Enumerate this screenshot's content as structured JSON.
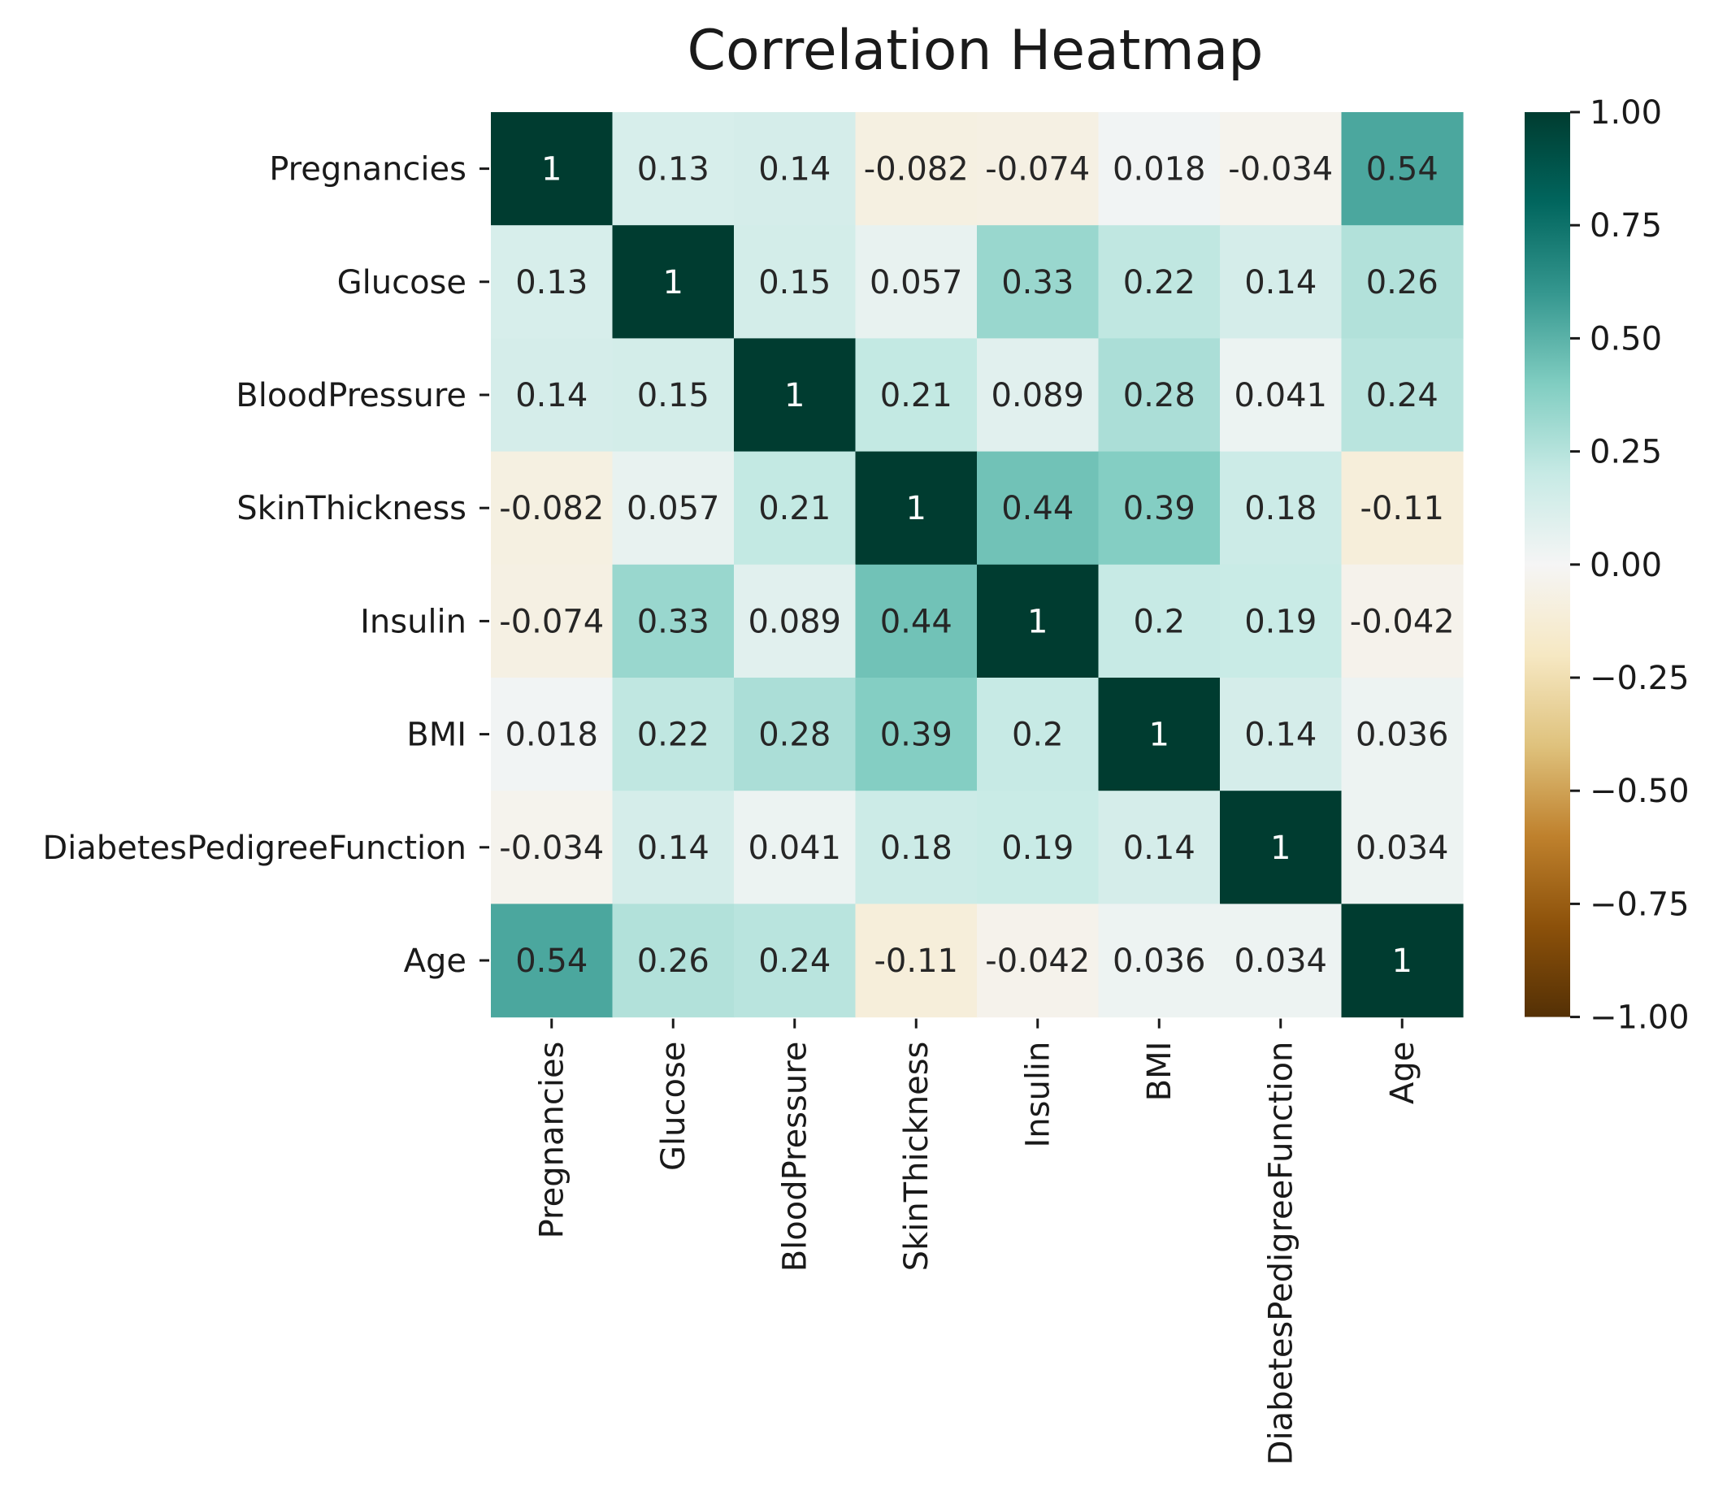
{
  "chart_data": {
    "type": "heatmap",
    "title": "Correlation Heatmap",
    "xlabel": "",
    "ylabel": "",
    "rows": [
      "Pregnancies",
      "Glucose",
      "BloodPressure",
      "SkinThickness",
      "Insulin",
      "BMI",
      "DiabetesPedigreeFunction",
      "Age"
    ],
    "columns": [
      "Pregnancies",
      "Glucose",
      "BloodPressure",
      "SkinThickness",
      "Insulin",
      "BMI",
      "DiabetesPedigreeFunction",
      "Age"
    ],
    "values": [
      [
        1,
        0.13,
        0.14,
        -0.082,
        -0.074,
        0.018,
        -0.034,
        0.54
      ],
      [
        0.13,
        1,
        0.15,
        0.057,
        0.33,
        0.22,
        0.14,
        0.26
      ],
      [
        0.14,
        0.15,
        1,
        0.21,
        0.089,
        0.28,
        0.041,
        0.24
      ],
      [
        -0.082,
        0.057,
        0.21,
        1,
        0.44,
        0.39,
        0.18,
        -0.11
      ],
      [
        -0.074,
        0.33,
        0.089,
        0.44,
        1,
        0.2,
        0.19,
        -0.042
      ],
      [
        0.018,
        0.22,
        0.28,
        0.39,
        0.2,
        1,
        0.14,
        0.036
      ],
      [
        -0.034,
        0.14,
        0.041,
        0.18,
        0.19,
        0.14,
        1,
        0.034
      ],
      [
        0.54,
        0.26,
        0.24,
        -0.11,
        -0.042,
        0.036,
        0.034,
        1
      ]
    ],
    "cell_labels": [
      [
        "1",
        "0.13",
        "0.14",
        "-0.082",
        "-0.074",
        "0.018",
        "-0.034",
        "0.54"
      ],
      [
        "0.13",
        "1",
        "0.15",
        "0.057",
        "0.33",
        "0.22",
        "0.14",
        "0.26"
      ],
      [
        "0.14",
        "0.15",
        "1",
        "0.21",
        "0.089",
        "0.28",
        "0.041",
        "0.24"
      ],
      [
        "-0.082",
        "0.057",
        "0.21",
        "1",
        "0.44",
        "0.39",
        "0.18",
        "-0.11"
      ],
      [
        "-0.074",
        "0.33",
        "0.089",
        "0.44",
        "1",
        "0.2",
        "0.19",
        "-0.042"
      ],
      [
        "0.018",
        "0.22",
        "0.28",
        "0.39",
        "0.2",
        "1",
        "0.14",
        "0.036"
      ],
      [
        "-0.034",
        "0.14",
        "0.041",
        "0.18",
        "0.19",
        "0.14",
        "1",
        "0.034"
      ],
      [
        "0.54",
        "0.26",
        "0.24",
        "-0.11",
        "-0.042",
        "0.036",
        "0.034",
        "1"
      ]
    ],
    "colorbar": {
      "range": [
        -1,
        1
      ],
      "tick_values": [
        1,
        0.75,
        0.5,
        0.25,
        0,
        -0.25,
        -0.5,
        -0.75,
        -1
      ],
      "tick_labels": [
        "1.00",
        "0.75",
        "0.50",
        "0.25",
        "0.00",
        "−0.25",
        "−0.50",
        "−0.75",
        "−1.00"
      ],
      "colormap": "BrBG",
      "colormap_stops": [
        {
          "value": -1.0,
          "color": "#543005"
        },
        {
          "value": -0.8,
          "color": "#8c510a"
        },
        {
          "value": -0.6,
          "color": "#bf812d"
        },
        {
          "value": -0.4,
          "color": "#dfc27d"
        },
        {
          "value": -0.2,
          "color": "#f6e8c3"
        },
        {
          "value": 0.0,
          "color": "#f5f5f5"
        },
        {
          "value": 0.2,
          "color": "#c7eae5"
        },
        {
          "value": 0.4,
          "color": "#80cdc1"
        },
        {
          "value": 0.6,
          "color": "#35978f"
        },
        {
          "value": 0.8,
          "color": "#01665e"
        },
        {
          "value": 1.0,
          "color": "#003c30"
        }
      ]
    },
    "annotation_text_colors": {
      "dark": "#262626",
      "light": "#ffffff"
    }
  }
}
